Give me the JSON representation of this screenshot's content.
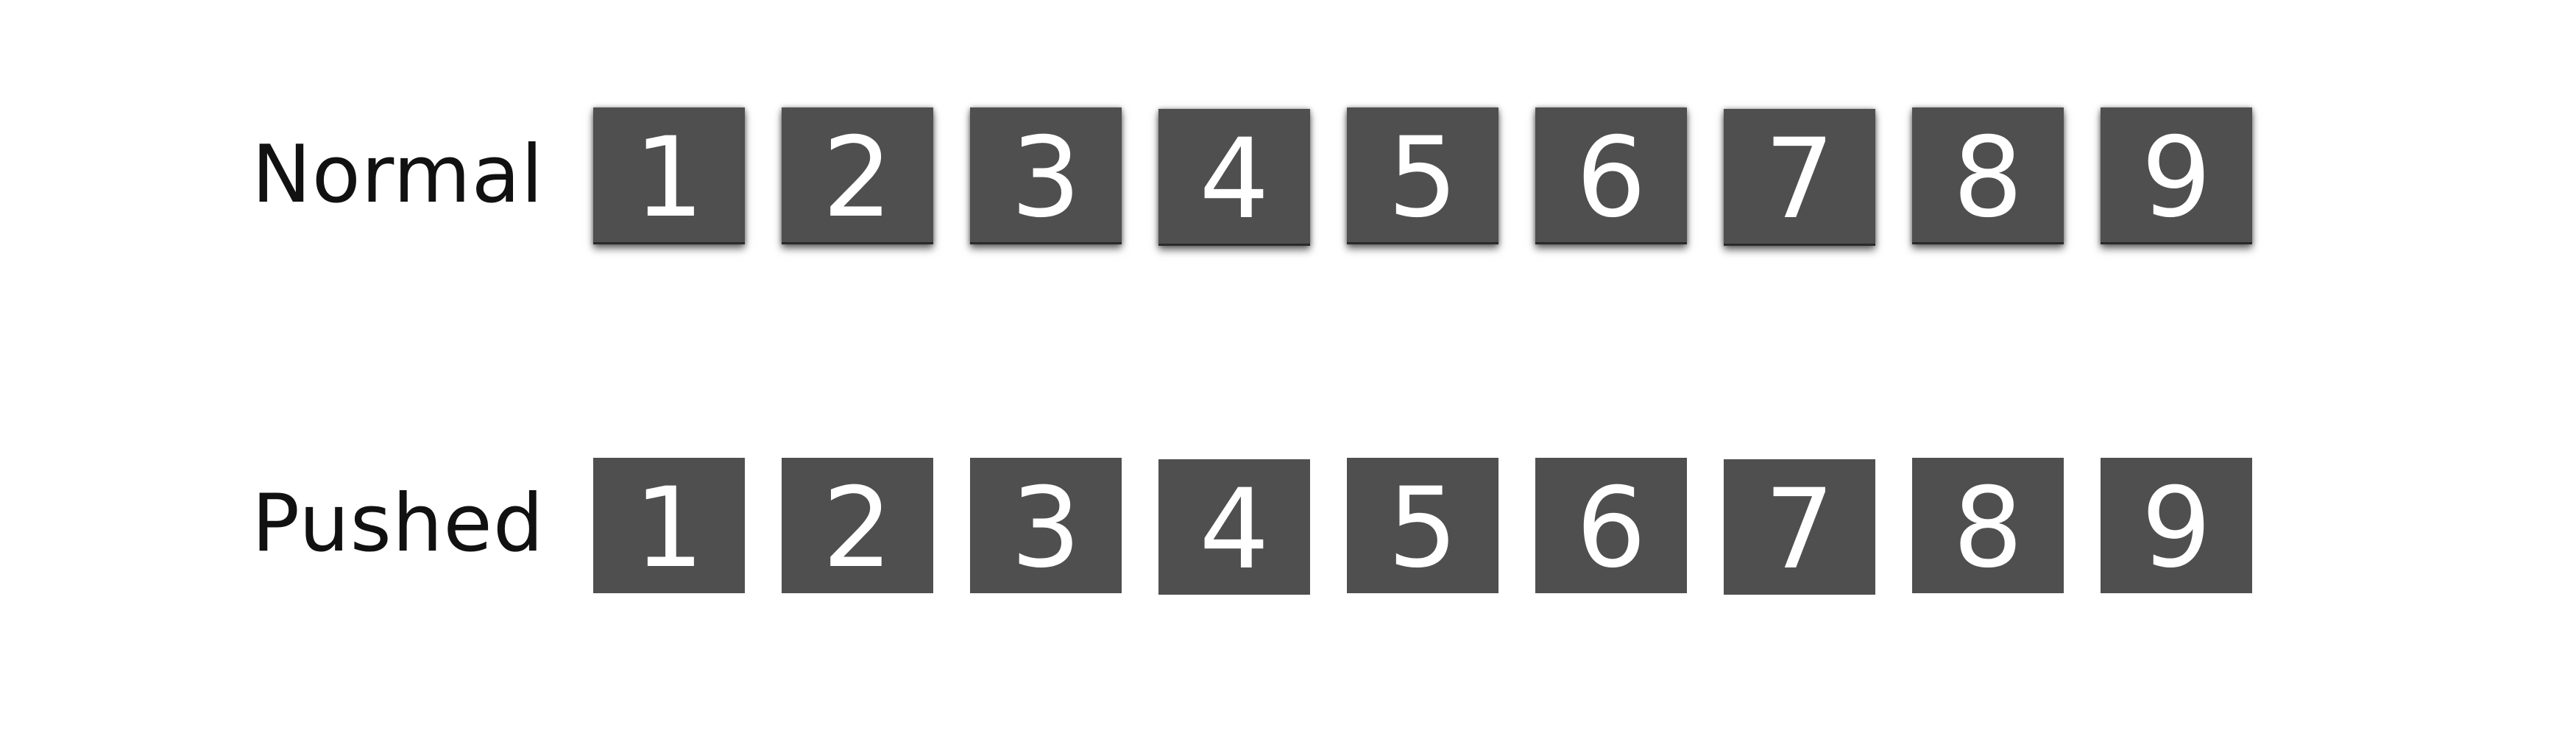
{
  "rows": [
    {
      "label": "Normal",
      "state": "raised",
      "keys": [
        "1",
        "2",
        "3",
        "4",
        "5",
        "6",
        "7",
        "8",
        "9"
      ]
    },
    {
      "label": "Pushed",
      "state": "pressed",
      "keys": [
        "1",
        "2",
        "3",
        "4",
        "5",
        "6",
        "7",
        "8",
        "9"
      ]
    }
  ],
  "colors": {
    "key_background": "#4f4f4f",
    "key_text": "#ffffff",
    "label_text": "#111111",
    "page_background": "#ffffff"
  }
}
